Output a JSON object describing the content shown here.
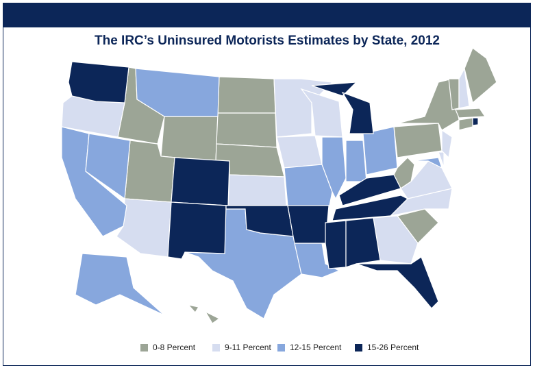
{
  "header": {
    "title": "The IRC’s Uninsured Motorists Estimates by State, 2012"
  },
  "legend": [
    {
      "label": "0-8 Percent",
      "color": "#9ca596",
      "states": [
        "ID",
        "WY",
        "UT",
        "ND",
        "SD",
        "NE",
        "WV",
        "PA",
        "NY",
        "CT",
        "MA",
        "VT",
        "ME",
        "SC",
        "HI"
      ]
    },
    {
      "label": "9-11 Percent",
      "color": "#d6ddf0",
      "states": [
        "OR",
        "AZ",
        "KS",
        "MN",
        "IA",
        "WI",
        "GA",
        "NC",
        "VA",
        "DE",
        "NJ",
        "NH"
      ]
    },
    {
      "label": "12-15 Percent",
      "color": "#87a7dd",
      "states": [
        "CA",
        "NV",
        "MT",
        "TX",
        "MO",
        "LA",
        "IL",
        "IN",
        "OH",
        "MD",
        "AK"
      ]
    },
    {
      "label": "15-26 Percent",
      "color": "#0c2658",
      "states": [
        "WA",
        "CO",
        "NM",
        "OK",
        "AR",
        "MI",
        "KY",
        "TN",
        "MS",
        "AL",
        "FL",
        "RI"
      ]
    }
  ]
}
